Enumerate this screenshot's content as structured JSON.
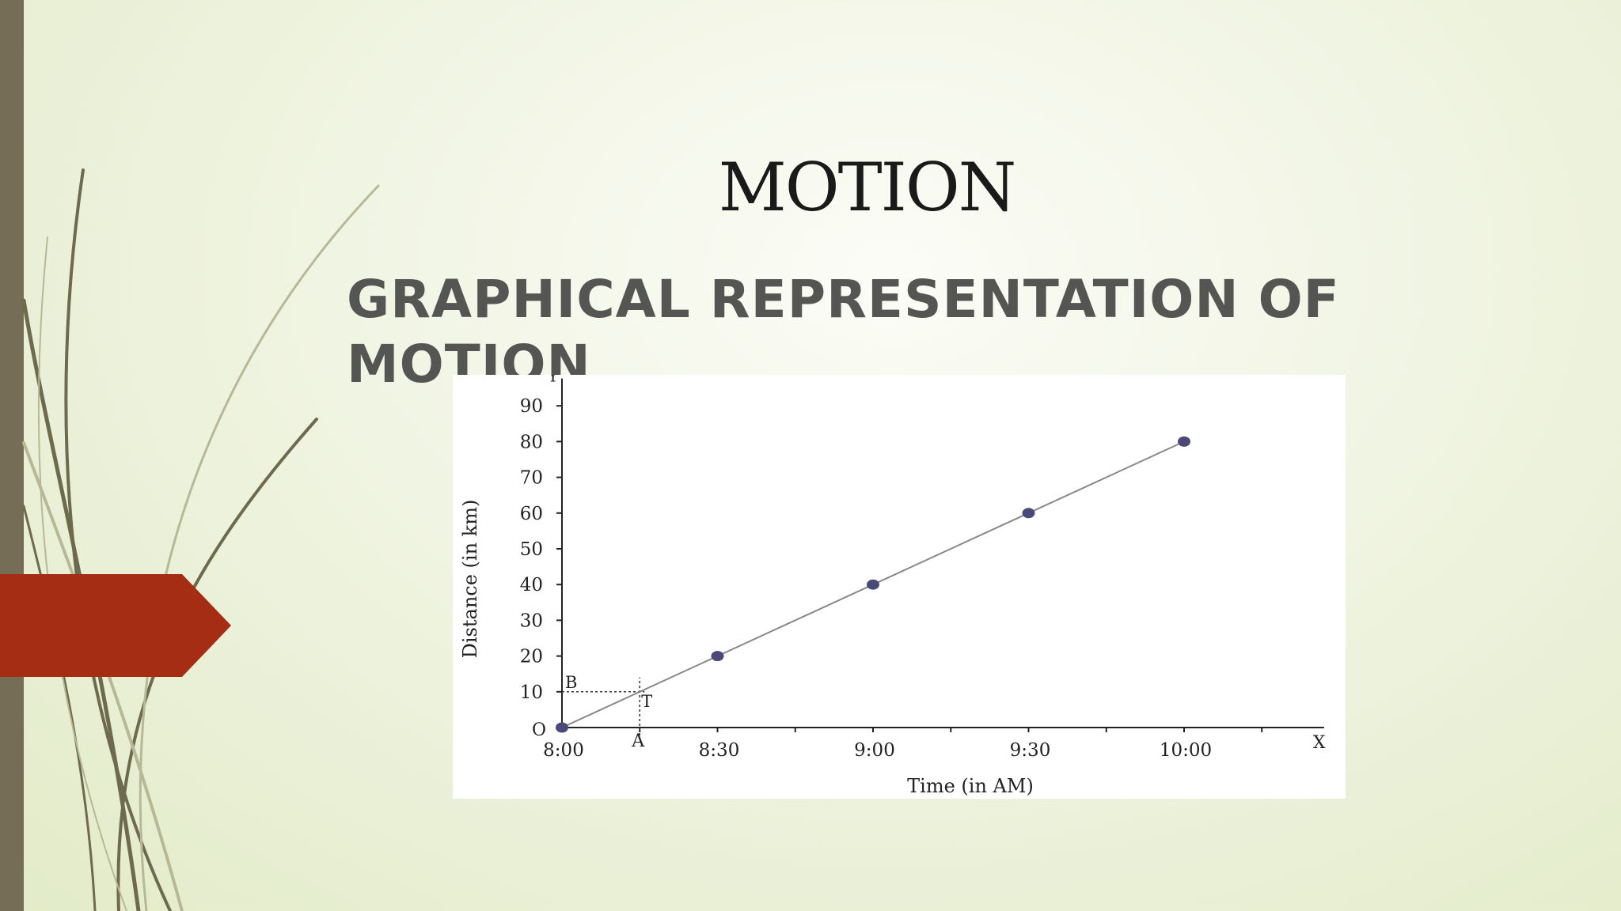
{
  "slide": {
    "title": "MOTION",
    "subtitle": "GRAPHICAL REPRESENTATION OF MOTION"
  },
  "colors": {
    "left_bar": "#756d55",
    "accent_red": "#a52d14",
    "point": "#4a4a78",
    "line": "#888888"
  },
  "chart_data": {
    "type": "line",
    "xlabel": "Time (in AM)",
    "ylabel": "Distance (in km)",
    "x_axis_letter": "X",
    "y_axis_letter": "Y",
    "origin_label": "O",
    "x_ticks": [
      {
        "label": "8:00",
        "value": 0
      },
      {
        "label": "8:30",
        "value": 30
      },
      {
        "label": "9:00",
        "value": 60
      },
      {
        "label": "9:30",
        "value": 90
      },
      {
        "label": "10:00",
        "value": 120
      }
    ],
    "y_ticks": [
      0,
      10,
      20,
      30,
      40,
      50,
      60,
      70,
      80,
      90
    ],
    "xlim": [
      0,
      147
    ],
    "ylim": [
      0,
      95
    ],
    "series": [
      {
        "points": [
          {
            "x": 0,
            "y": 0
          },
          {
            "x": 30,
            "y": 20
          },
          {
            "x": 60,
            "y": 40
          },
          {
            "x": 90,
            "y": 60
          },
          {
            "x": 120,
            "y": 80
          }
        ]
      }
    ],
    "marked_points": [
      0,
      1,
      2,
      3,
      4
    ],
    "annotations": {
      "A": {
        "label": "A",
        "x": 15
      },
      "B": {
        "label": "B",
        "y": 10
      },
      "T": {
        "label": "T",
        "x": 15,
        "y": 10
      }
    }
  }
}
